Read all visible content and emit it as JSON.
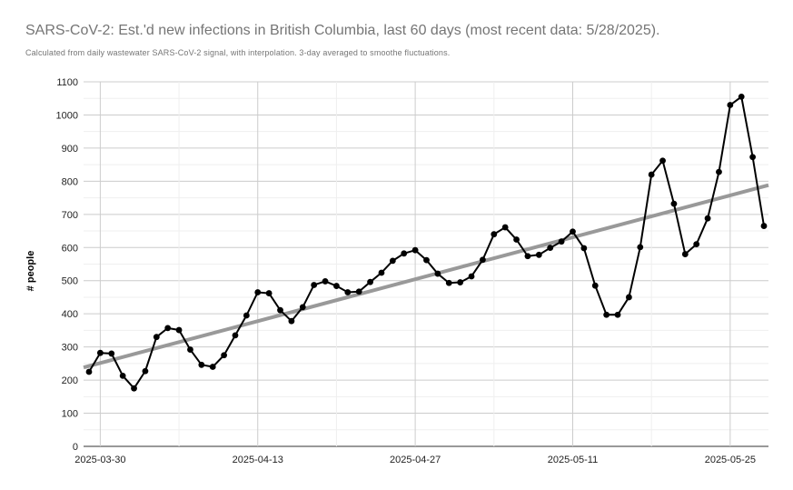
{
  "chart_data": {
    "type": "line",
    "title": "SARS-CoV-2: Est.'d new infections in British Columbia, last 60 days (most recent data: 5/28/2025).",
    "subtitle": "Calculated from daily wastewater SARS-CoV-2 signal, with interpolation. 3-day averaged to smoothe fluctuations.",
    "xlabel": "",
    "ylabel": "# people",
    "ylim": [
      0,
      1100
    ],
    "yticks": [
      "0",
      "100",
      "200",
      "300",
      "400",
      "500",
      "600",
      "700",
      "800",
      "900",
      "1000",
      "1100"
    ],
    "x_start": "2025-03-29",
    "xticks": [
      "2025-03-30",
      "2025-04-13",
      "2025-04-27",
      "2025-05-11",
      "2025-05-25"
    ],
    "grid": true,
    "legend": "none",
    "series": [
      {
        "color": "#000000",
        "marker": "circle",
        "values": [
          225,
          282,
          280,
          213,
          175,
          227,
          330,
          357,
          351,
          292,
          246,
          240,
          275,
          335,
          395,
          465,
          462,
          411,
          378,
          420,
          487,
          498,
          484,
          465,
          467,
          496,
          524,
          560,
          582,
          592,
          562,
          521,
          493,
          495,
          513,
          563,
          640,
          661,
          624,
          574,
          578,
          599,
          618,
          648,
          598,
          485,
          397,
          397,
          450,
          601,
          820,
          862,
          732,
          580,
          610,
          688,
          828,
          1030,
          1055,
          873,
          665
        ]
      },
      {
        "type": "trendline",
        "color": "#999999",
        "values_at_ends": [
          238,
          788
        ]
      }
    ]
  }
}
